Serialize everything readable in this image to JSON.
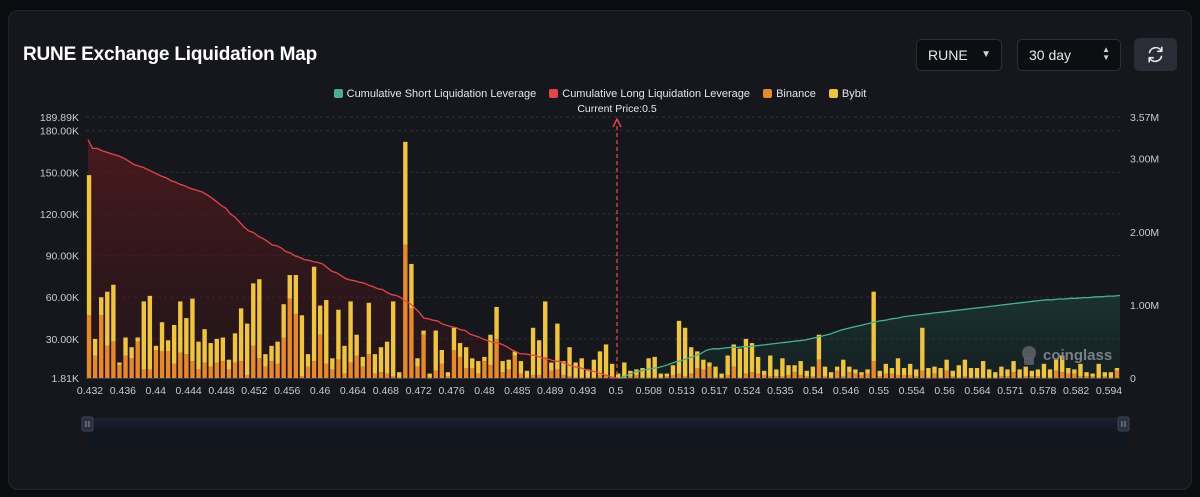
{
  "header": {
    "title": "RUNE Exchange Liquidation Map",
    "coin_select": "RUNE",
    "range_select": "30 day",
    "refresh_icon": "refresh-icon"
  },
  "legend": [
    {
      "label": "Cumulative Short Liquidation Leverage",
      "color": "#4aaf8f"
    },
    {
      "label": "Cumulative Long Liquidation Leverage",
      "color": "#e0474c"
    },
    {
      "label": "Binance",
      "color": "#e5892c"
    },
    {
      "label": "Bybit",
      "color": "#efc443"
    }
  ],
  "watermark": "coinglass",
  "chart_data": {
    "type": "bar",
    "title": "RUNE Exchange Liquidation Map",
    "current_price_label": "Current Price:0.5",
    "current_price": 0.5,
    "x_tick_labels": [
      "0.432",
      "0.436",
      "0.44",
      "0.444",
      "0.448",
      "0.452",
      "0.456",
      "0.46",
      "0.464",
      "0.468",
      "0.472",
      "0.476",
      "0.48",
      "0.485",
      "0.489",
      "0.493",
      "0.5",
      "0.508",
      "0.513",
      "0.517",
      "0.524",
      "0.535",
      "0.54",
      "0.546",
      "0.55",
      "0.554",
      "0.56",
      "0.564",
      "0.571",
      "0.578",
      "0.582",
      "0.594"
    ],
    "y_left_ticks": [
      1810,
      30000,
      60000,
      90000,
      120000,
      150000,
      180000,
      189890
    ],
    "y_left_tick_labels": [
      "1.81K",
      "30.00K",
      "60.00K",
      "90.00K",
      "120.00K",
      "150.00K",
      "180.00K",
      "189.89K"
    ],
    "y_left_range": [
      1810,
      189890
    ],
    "y_right_ticks": [
      0,
      1000000,
      2000000,
      3000000,
      3570000
    ],
    "y_right_tick_labels": [
      "0",
      "1.00M",
      "2.00M",
      "3.00M",
      "3.57M"
    ],
    "y_right_range": [
      0,
      3570000
    ],
    "bar_series": [
      {
        "name": "Binance",
        "values": [
          47000,
          18000,
          47000,
          25000,
          28000,
          11000,
          18000,
          16000,
          28000,
          8000,
          8000,
          22000,
          21000,
          21000,
          12000,
          20000,
          19000,
          14000,
          8000,
          13000,
          10000,
          13000,
          14000,
          8000,
          13000,
          14000,
          4000,
          25000,
          16000,
          10000,
          14000,
          12000,
          31000,
          59000,
          48000,
          3000,
          10000,
          14000,
          33000,
          12000,
          8000,
          15000,
          5000,
          13000,
          18000,
          10000,
          19000,
          5000,
          6000,
          5000,
          3000,
          2000,
          98000,
          52000,
          10000,
          33000,
          2000,
          7000,
          12000,
          3000,
          22000,
          17000,
          9000,
          9000,
          5000,
          14000,
          11000,
          30000,
          6000,
          8000,
          18000,
          5000,
          2000,
          4000,
          4000,
          17000,
          7000,
          8000,
          4000,
          3000,
          2000,
          2000,
          2000,
          2000,
          4000,
          4000,
          2000,
          2000,
          2000,
          3000,
          4000,
          2000,
          2000,
          2000,
          2000,
          3000,
          4000,
          5000,
          3000,
          5000,
          9000,
          8000,
          10000,
          2000,
          2000,
          4000,
          10000,
          2000,
          5000,
          6000,
          5000,
          4000,
          3000,
          3000,
          3000,
          4000,
          6000,
          4000,
          3000,
          3000,
          15000,
          3000,
          2000,
          7000,
          3000,
          6000,
          5000,
          4000,
          5000,
          14000,
          3000,
          5000,
          5000,
          4000,
          4000,
          4000,
          3000,
          7000,
          2000,
          5000,
          2000,
          7000,
          3000,
          2000,
          3000,
          2000,
          2000,
          2000,
          2000,
          2000,
          3000,
          3000,
          6000,
          2000,
          3000,
          3000,
          3000,
          2000,
          2000,
          7000,
          6000,
          5000,
          5000,
          3000,
          3000,
          3000,
          2000,
          3000,
          2000,
          7000
        ]
      },
      {
        "name": "Bybit",
        "values": [
          101000,
          12000,
          13000,
          39000,
          41000,
          2000,
          13000,
          8000,
          3000,
          49000,
          53000,
          3000,
          21000,
          8000,
          28000,
          37000,
          26000,
          45000,
          20000,
          24000,
          17000,
          17000,
          17000,
          7000,
          21000,
          38000,
          37000,
          45000,
          57000,
          9000,
          11000,
          16000,
          24000,
          17000,
          28000,
          44000,
          9000,
          68000,
          21000,
          46000,
          8000,
          36000,
          20000,
          44000,
          15000,
          7000,
          37000,
          14000,
          18000,
          23000,
          54000,
          4000,
          74000,
          32000,
          6000,
          3000,
          3000,
          29000,
          10000,
          3000,
          16000,
          10000,
          15000,
          7000,
          9000,
          3000,
          22000,
          23000,
          8000,
          7000,
          3000,
          9000,
          5000,
          34000,
          25000,
          40000,
          6000,
          33000,
          10000,
          21000,
          11000,
          14000,
          6000,
          13000,
          17000,
          22000,
          10000,
          3000,
          11000,
          4000,
          4000,
          7000,
          14000,
          15000,
          3000,
          2000,
          7000,
          38000,
          35000,
          19000,
          12000,
          7000,
          3000,
          8000,
          3000,
          14000,
          16000,
          21000,
          25000,
          21000,
          12000,
          3000,
          15000,
          5000,
          13000,
          7000,
          5000,
          10000,
          4000,
          7000,
          18000,
          7000,
          4000,
          3000,
          12000,
          4000,
          3000,
          2000,
          3000,
          50000,
          4000,
          7000,
          4000,
          12000,
          5000,
          8000,
          5000,
          31000,
          7000,
          5000,
          7000,
          8000,
          4000,
          9000,
          12000,
          7000,
          7000,
          12000,
          6000,
          4000,
          7000,
          5000,
          8000,
          6000,
          7000,
          4000,
          5000,
          10000,
          6000,
          9000,
          12000,
          4000,
          3000,
          9000,
          3000,
          2000,
          10000,
          3000,
          4000,
          2000,
          2000,
          4000
        ]
      }
    ],
    "line_series": [
      {
        "name": "Cumulative Long Liquidation Leverage",
        "x_range": [
          0.432,
          0.5
        ],
        "values": [
          3260000,
          3140000,
          3140000,
          3110000,
          3090000,
          3070000,
          3050000,
          3030000,
          3000000,
          2960000,
          2920000,
          2900000,
          2880000,
          2850000,
          2820000,
          2790000,
          2760000,
          2740000,
          2700000,
          2680000,
          2650000,
          2630000,
          2600000,
          2580000,
          2560000,
          2540000,
          2500000,
          2460000,
          2410000,
          2360000,
          2320000,
          2240000,
          2200000,
          2130000,
          2060000,
          2010000,
          1990000,
          1940000,
          1910000,
          1870000,
          1820000,
          1810000,
          1780000,
          1730000,
          1710000,
          1670000,
          1650000,
          1620000,
          1610000,
          1590000,
          1580000,
          1560000,
          1510000,
          1460000,
          1440000,
          1400000,
          1360000,
          1340000,
          1330000,
          1310000,
          1300000,
          1270000,
          1250000,
          1220000,
          1210000,
          1170000,
          1140000,
          1130000,
          1100000,
          1050000,
          1020000,
          960000,
          900000,
          820000,
          810000,
          790000,
          780000,
          740000,
          720000,
          700000,
          690000,
          660000,
          650000,
          600000,
          580000,
          560000,
          530000,
          510000,
          490000,
          480000,
          460000,
          430000,
          390000,
          360000,
          330000,
          330000,
          320000,
          310000,
          290000,
          270000,
          260000,
          240000,
          230000,
          220000,
          190000,
          170000,
          150000,
          140000,
          120000,
          100000,
          90000,
          70000,
          50000,
          30000,
          10000,
          0
        ]
      },
      {
        "name": "Cumulative Short Liquidation Leverage",
        "x_range": [
          0.5,
          0.594
        ],
        "values": [
          0,
          30000,
          70000,
          90000,
          110000,
          130000,
          140000,
          160000,
          190000,
          220000,
          240000,
          270000,
          300000,
          330000,
          380000,
          400000,
          400000,
          410000,
          420000,
          420000,
          430000,
          430000,
          440000,
          450000,
          460000,
          470000,
          480000,
          490000,
          500000,
          510000,
          520000,
          540000,
          560000,
          580000,
          600000,
          630000,
          660000,
          680000,
          700000,
          720000,
          740000,
          760000,
          780000,
          790000,
          810000,
          820000,
          840000,
          850000,
          860000,
          870000,
          880000,
          890000,
          900000,
          910000,
          920000,
          930000,
          940000,
          950000,
          960000,
          970000,
          980000,
          990000,
          1000000,
          1010000,
          1020000,
          1030000,
          1040000,
          1050000,
          1060000,
          1070000,
          1070000,
          1080000,
          1080000,
          1090000,
          1090000,
          1100000,
          1100000,
          1110000,
          1110000,
          1120000,
          1120000,
          1130000
        ]
      }
    ]
  }
}
